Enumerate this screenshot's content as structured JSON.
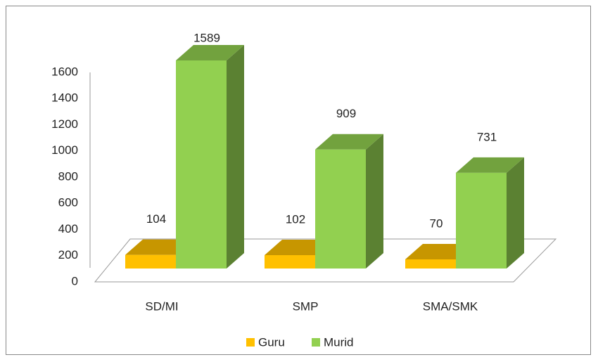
{
  "chart_data": {
    "type": "bar3d",
    "categories": [
      "SD/MI",
      "SMP",
      "SMA/SMK"
    ],
    "series": [
      {
        "name": "Guru",
        "color": "#ffc000",
        "values": [
          104,
          102,
          70
        ]
      },
      {
        "name": "Murid",
        "color": "#92d050",
        "values": [
          1589,
          909,
          731
        ]
      }
    ],
    "ylim": [
      0,
      1600
    ],
    "yticks": [
      0,
      200,
      400,
      600,
      800,
      1000,
      1200,
      1400,
      1600
    ],
    "legend": "bottom"
  }
}
